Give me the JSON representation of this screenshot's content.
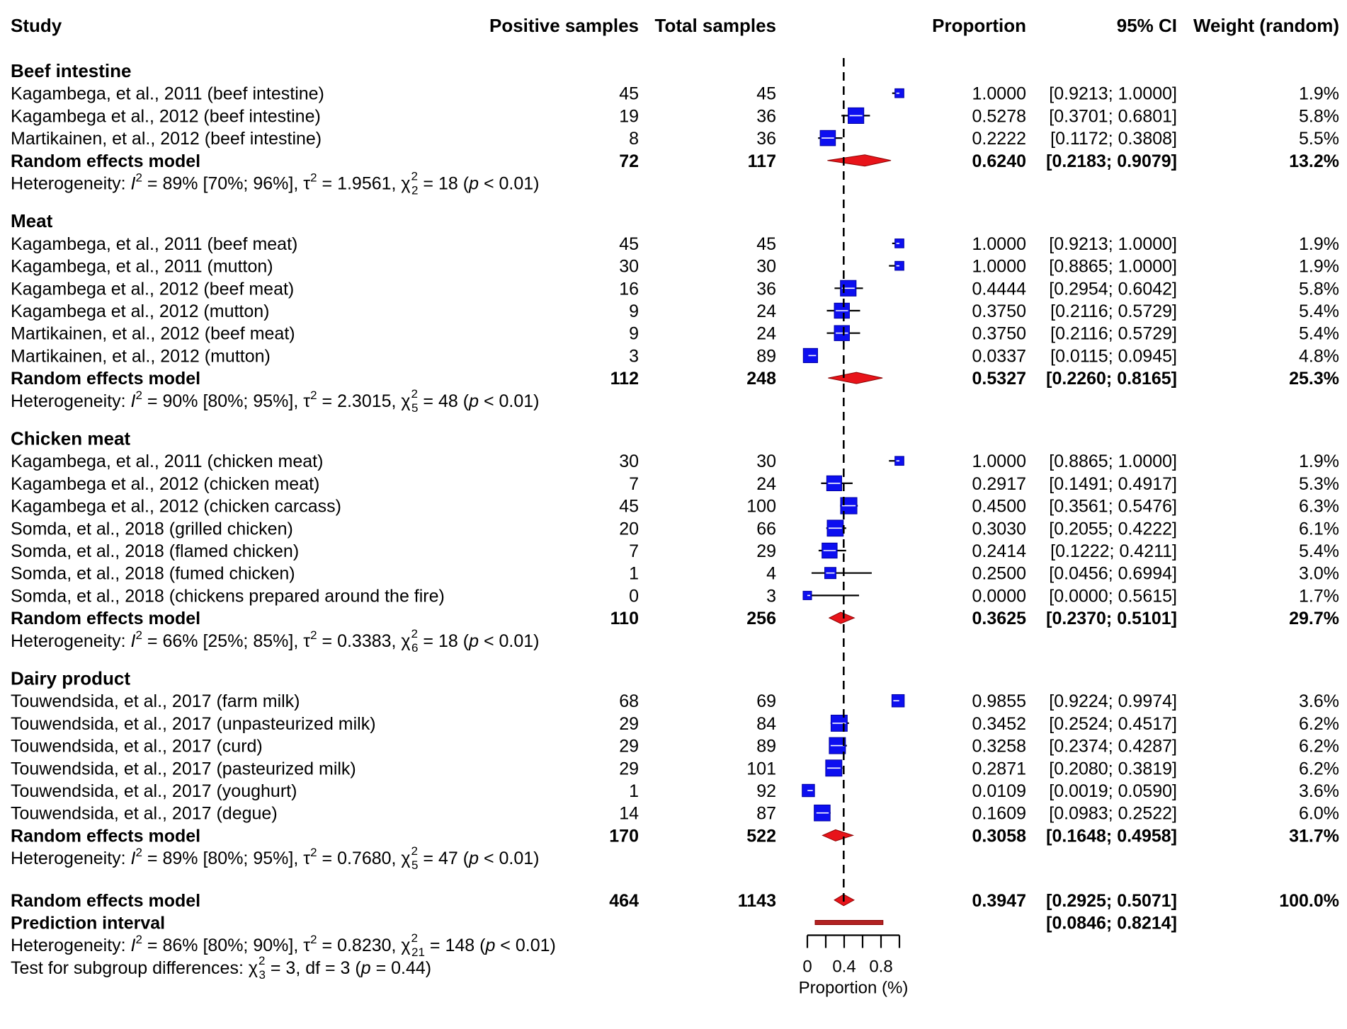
{
  "headers": {
    "study": "Study",
    "positive": "Positive samples",
    "total": "Total samples",
    "proportion": "Proportion",
    "ci": "95% CI",
    "weight": "Weight (random)"
  },
  "chart_data": {
    "type": "forest",
    "xlabel": "Proportion (%)",
    "xlim": [
      0,
      1
    ],
    "xticks": [
      0,
      0.4,
      0.8
    ],
    "xtick_labels": [
      "0",
      "0.4",
      "0.8"
    ],
    "reference_line": 0.3947,
    "groups": [
      {
        "name": "Beef intestine",
        "studies": [
          {
            "label": "Kagambega, et al., 2011 (beef intestine)",
            "positive": "45",
            "total": "45",
            "prop": 1.0,
            "lower": 0.9213,
            "upper": 1.0,
            "prop_text": "1.0000",
            "ci_text": "[0.9213; 1.0000]",
            "weight_text": "1.9%",
            "weight": 1.9
          },
          {
            "label": "Kagambega et al., 2012 (beef intestine)",
            "positive": "19",
            "total": "36",
            "prop": 0.5278,
            "lower": 0.3701,
            "upper": 0.6801,
            "prop_text": "0.5278",
            "ci_text": "[0.3701; 0.6801]",
            "weight_text": "5.8%",
            "weight": 5.8
          },
          {
            "label": "Martikainen, et al., 2012 (beef intestine)",
            "positive": "8",
            "total": "36",
            "prop": 0.2222,
            "lower": 0.1172,
            "upper": 0.3808,
            "prop_text": "0.2222",
            "ci_text": "[0.1172; 0.3808]",
            "weight_text": "5.5%",
            "weight": 5.5
          }
        ],
        "model": {
          "label": "Random effects model",
          "positive": "72",
          "total": "117",
          "prop": 0.624,
          "lower": 0.2183,
          "upper": 0.9079,
          "prop_text": "0.6240",
          "ci_text": "[0.2183; 0.9079]",
          "weight_text": "13.2%"
        },
        "het": {
          "i2": "89% [70%; 96%]",
          "tau2": "1.9561",
          "df": "2",
          "chi": "18",
          "p": "p",
          "pval": "< 0.01"
        }
      },
      {
        "name": "Meat",
        "studies": [
          {
            "label": "Kagambega, et al., 2011 (beef meat)",
            "positive": "45",
            "total": "45",
            "prop": 1.0,
            "lower": 0.9213,
            "upper": 1.0,
            "prop_text": "1.0000",
            "ci_text": "[0.9213; 1.0000]",
            "weight_text": "1.9%",
            "weight": 1.9
          },
          {
            "label": "Kagambega, et al., 2011 (mutton)",
            "positive": "30",
            "total": "30",
            "prop": 1.0,
            "lower": 0.8865,
            "upper": 1.0,
            "prop_text": "1.0000",
            "ci_text": "[0.8865; 1.0000]",
            "weight_text": "1.9%",
            "weight": 1.9
          },
          {
            "label": "Kagambega et al., 2012 (beef meat)",
            "positive": "16",
            "total": "36",
            "prop": 0.4444,
            "lower": 0.2954,
            "upper": 0.6042,
            "prop_text": "0.4444",
            "ci_text": "[0.2954; 0.6042]",
            "weight_text": "5.8%",
            "weight": 5.8
          },
          {
            "label": "Kagambega et al., 2012 (mutton)",
            "positive": "9",
            "total": "24",
            "prop": 0.375,
            "lower": 0.2116,
            "upper": 0.5729,
            "prop_text": "0.3750",
            "ci_text": "[0.2116; 0.5729]",
            "weight_text": "5.4%",
            "weight": 5.4
          },
          {
            "label": "Martikainen, et al., 2012 (beef meat)",
            "positive": "9",
            "total": "24",
            "prop": 0.375,
            "lower": 0.2116,
            "upper": 0.5729,
            "prop_text": "0.3750",
            "ci_text": "[0.2116; 0.5729]",
            "weight_text": "5.4%",
            "weight": 5.4
          },
          {
            "label": "Martikainen, et al., 2012 (mutton)",
            "positive": "3",
            "total": "89",
            "prop": 0.0337,
            "lower": 0.0115,
            "upper": 0.0945,
            "prop_text": "0.0337",
            "ci_text": "[0.0115; 0.0945]",
            "weight_text": "4.8%",
            "weight": 4.8
          }
        ],
        "model": {
          "label": "Random effects model",
          "positive": "112",
          "total": "248",
          "prop": 0.5327,
          "lower": 0.226,
          "upper": 0.8165,
          "prop_text": "0.5327",
          "ci_text": "[0.2260; 0.8165]",
          "weight_text": "25.3%"
        },
        "het": {
          "i2": "90% [80%; 95%]",
          "tau2": "2.3015",
          "df": "5",
          "chi": "48",
          "p": "p",
          "pval": "< 0.01"
        }
      },
      {
        "name": "Chicken meat",
        "studies": [
          {
            "label": "Kagambega, et al., 2011 (chicken meat)",
            "positive": "30",
            "total": "30",
            "prop": 1.0,
            "lower": 0.8865,
            "upper": 1.0,
            "prop_text": "1.0000",
            "ci_text": "[0.8865; 1.0000]",
            "weight_text": "1.9%",
            "weight": 1.9
          },
          {
            "label": "Kagambega et al., 2012 (chicken meat)",
            "positive": "7",
            "total": "24",
            "prop": 0.2917,
            "lower": 0.1491,
            "upper": 0.4917,
            "prop_text": "0.2917",
            "ci_text": "[0.1491; 0.4917]",
            "weight_text": "5.3%",
            "weight": 5.3
          },
          {
            "label": "Kagambega et al., 2012 (chicken carcass)",
            "positive": "45",
            "total": "100",
            "prop": 0.45,
            "lower": 0.3561,
            "upper": 0.5476,
            "prop_text": "0.4500",
            "ci_text": "[0.3561; 0.5476]",
            "weight_text": "6.3%",
            "weight": 6.3
          },
          {
            "label": "Somda, et al., 2018 (grilled chicken)",
            "positive": "20",
            "total": "66",
            "prop": 0.303,
            "lower": 0.2055,
            "upper": 0.4222,
            "prop_text": "0.3030",
            "ci_text": "[0.2055; 0.4222]",
            "weight_text": "6.1%",
            "weight": 6.1
          },
          {
            "label": "Somda, et al., 2018 (flamed chicken)",
            "positive": "7",
            "total": "29",
            "prop": 0.2414,
            "lower": 0.1222,
            "upper": 0.4211,
            "prop_text": "0.2414",
            "ci_text": "[0.1222; 0.4211]",
            "weight_text": "5.4%",
            "weight": 5.4
          },
          {
            "label": "Somda, et al., 2018 (fumed chicken)",
            "positive": "1",
            "total": "4",
            "prop": 0.25,
            "lower": 0.0456,
            "upper": 0.6994,
            "prop_text": "0.2500",
            "ci_text": "[0.0456; 0.6994]",
            "weight_text": "3.0%",
            "weight": 3.0
          },
          {
            "label": "Somda, et al., 2018 (chickens prepared around the fire)",
            "positive": "0",
            "total": "3",
            "prop": 0.0,
            "lower": 0.0,
            "upper": 0.5615,
            "prop_text": "0.0000",
            "ci_text": "[0.0000; 0.5615]",
            "weight_text": "1.7%",
            "weight": 1.7
          }
        ],
        "model": {
          "label": "Random effects model",
          "positive": "110",
          "total": "256",
          "prop": 0.3625,
          "lower": 0.237,
          "upper": 0.5101,
          "prop_text": "0.3625",
          "ci_text": "[0.2370; 0.5101]",
          "weight_text": "29.7%"
        },
        "het": {
          "i2": "66% [25%; 85%]",
          "tau2": "0.3383",
          "df": "6",
          "chi": "18",
          "p": "p",
          "pval": "< 0.01"
        }
      },
      {
        "name": "Dairy product",
        "studies": [
          {
            "label": "Touwendsida, et al., 2017 (farm milk)",
            "positive": "68",
            "total": "69",
            "prop": 0.9855,
            "lower": 0.9224,
            "upper": 0.9974,
            "prop_text": "0.9855",
            "ci_text": "[0.9224; 0.9974]",
            "weight_text": "3.6%",
            "weight": 3.6
          },
          {
            "label": "Touwendsida, et al., 2017 (unpasteurized milk)",
            "positive": "29",
            "total": "84",
            "prop": 0.3452,
            "lower": 0.2524,
            "upper": 0.4517,
            "prop_text": "0.3452",
            "ci_text": "[0.2524; 0.4517]",
            "weight_text": "6.2%",
            "weight": 6.2
          },
          {
            "label": "Touwendsida, et al., 2017 (curd)",
            "positive": "29",
            "total": "89",
            "prop": 0.3258,
            "lower": 0.2374,
            "upper": 0.4287,
            "prop_text": "0.3258",
            "ci_text": "[0.2374; 0.4287]",
            "weight_text": "6.2%",
            "weight": 6.2
          },
          {
            "label": "Touwendsida, et al., 2017 (pasteurized milk)",
            "positive": "29",
            "total": "101",
            "prop": 0.2871,
            "lower": 0.208,
            "upper": 0.3819,
            "prop_text": "0.2871",
            "ci_text": "[0.2080; 0.3819]",
            "weight_text": "6.2%",
            "weight": 6.2
          },
          {
            "label": "Touwendsida, et al., 2017 (youghurt)",
            "positive": "1",
            "total": "92",
            "prop": 0.0109,
            "lower": 0.0019,
            "upper": 0.059,
            "prop_text": "0.0109",
            "ci_text": "[0.0019; 0.0590]",
            "weight_text": "3.6%",
            "weight": 3.6
          },
          {
            "label": "Touwendsida, et al., 2017 (degue)",
            "positive": "14",
            "total": "87",
            "prop": 0.1609,
            "lower": 0.0983,
            "upper": 0.2522,
            "prop_text": "0.1609",
            "ci_text": "[0.0983; 0.2522]",
            "weight_text": "6.0%",
            "weight": 6.0
          }
        ],
        "model": {
          "label": "Random effects model",
          "positive": "170",
          "total": "522",
          "prop": 0.3058,
          "lower": 0.1648,
          "upper": 0.4958,
          "prop_text": "0.3058",
          "ci_text": "[0.1648; 0.4958]",
          "weight_text": "31.7%"
        },
        "het": {
          "i2": "89% [80%; 95%]",
          "tau2": "0.7680",
          "df": "5",
          "chi": "47",
          "p": "p",
          "pval": "< 0.01"
        }
      }
    ],
    "overall": {
      "model": {
        "label": "Random effects model",
        "positive": "464",
        "total": "1143",
        "prop": 0.3947,
        "lower": 0.2925,
        "upper": 0.5071,
        "prop_text": "0.3947",
        "ci_text": "[0.2925; 0.5071]",
        "weight_text": "100.0%"
      },
      "prediction": {
        "label": "Prediction interval",
        "lower": 0.0846,
        "upper": 0.8214,
        "ci_text": "[0.0846; 0.8214]"
      },
      "het": {
        "i2": "86% [80%; 90%]",
        "tau2": "0.8230",
        "df": "21",
        "chi": "148",
        "p": "p",
        "pval": "< 0.01"
      },
      "subgroup": {
        "label": "Test for subgroup differences: ",
        "df_sub": "3",
        "chi": "3",
        "df_text": ", df = 3 (",
        "p": "p",
        "pval": " = 0.44)"
      }
    }
  }
}
